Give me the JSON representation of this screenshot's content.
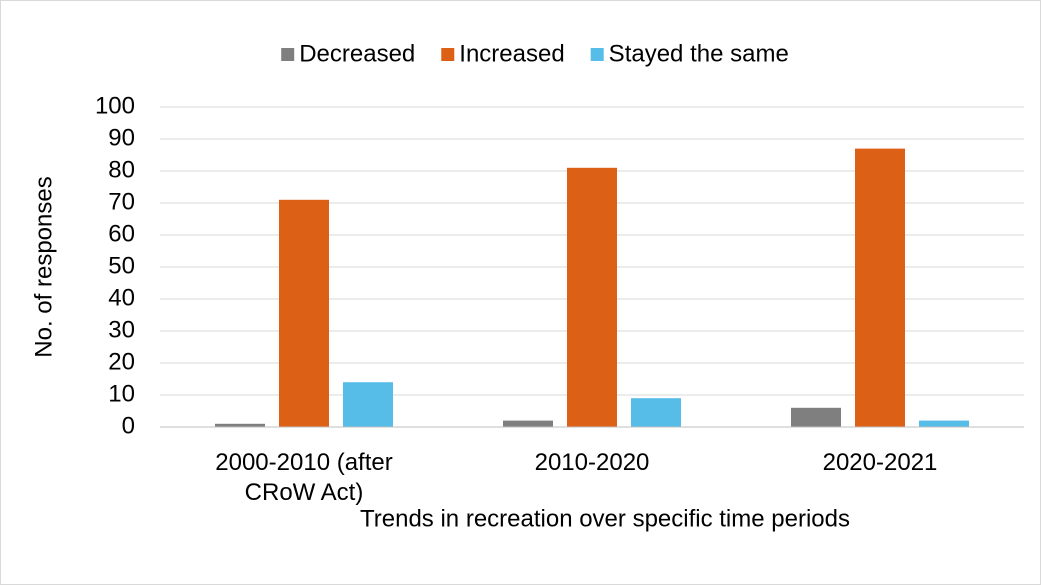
{
  "chart_data": {
    "type": "bar",
    "x_label": "Trends in recreation over specific time periods",
    "y_label": "No. of responses",
    "categories": [
      "2000-2010 (after CRoW Act)",
      "2010-2020",
      "2020-2021"
    ],
    "series": [
      {
        "name": "Decreased",
        "color": "#7f7f7f",
        "values": [
          1,
          2,
          6
        ]
      },
      {
        "name": "Increased",
        "color": "#dc6016",
        "values": [
          71,
          81,
          87
        ]
      },
      {
        "name": "Stayed the same",
        "color": "#56bde8",
        "values": [
          14,
          9,
          2
        ]
      }
    ],
    "ylim": [
      0,
      100
    ],
    "yticks": [
      0,
      10,
      20,
      30,
      40,
      50,
      60,
      70,
      80,
      90,
      100
    ],
    "grid": true,
    "legend": "top"
  }
}
